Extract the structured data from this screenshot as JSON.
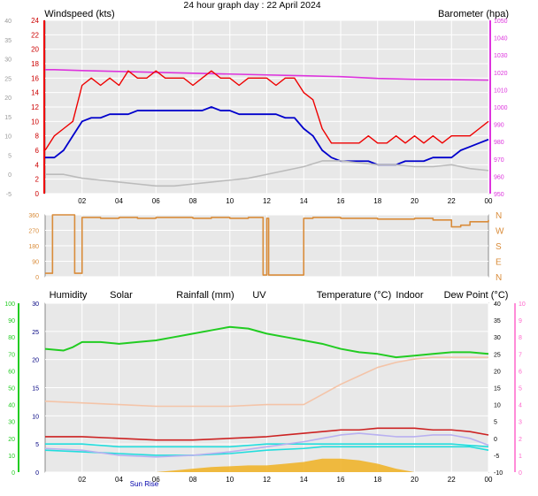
{
  "title": "24 hour graph day : 22 April 2024",
  "colors": {
    "wind_avg": "#0000cc",
    "wind_gust": "#ee0000",
    "temp_c": "#ee0000",
    "baro": "#dd33dd",
    "wind_dir": "#d98c3a",
    "humidity": "#22cc22",
    "solar": "#f0b020",
    "rain": "#000080",
    "uv": "#ff66cc",
    "temp": "#cc2222",
    "indoor": "#f4c4a8",
    "dewpoint": "#22dddd",
    "grey_series": "#bbbbbb",
    "lavender_series": "#b8b0f0",
    "bg": "#e8e8e8"
  },
  "chart_data": [
    {
      "type": "line",
      "panel": "wind_baro",
      "labels": {
        "left": "Windspeed (kts)",
        "right": "Barometer (hpa)"
      },
      "x_ticks": [
        "02",
        "04",
        "06",
        "08",
        "10",
        "12",
        "14",
        "16",
        "18",
        "20",
        "22",
        "00"
      ],
      "x_range": [
        0,
        24
      ],
      "left_outer_axis": {
        "range": [
          -5,
          40
        ],
        "ticks": [
          "-5",
          "0",
          "5",
          "10",
          "15",
          "20",
          "25",
          "30",
          "35",
          "40"
        ]
      },
      "left_axis": {
        "range": [
          0,
          24
        ],
        "ticks": [
          "0",
          "2",
          "4",
          "6",
          "8",
          "10",
          "12",
          "14",
          "16",
          "18",
          "20",
          "22",
          "24"
        ]
      },
      "right_axis": {
        "range": [
          950,
          1050
        ],
        "ticks": [
          "950",
          "960",
          "970",
          "980",
          "990",
          "1000",
          "1010",
          "1020",
          "1030",
          "1040",
          "1050"
        ]
      },
      "series": [
        {
          "name": "Barometer",
          "axis": "right",
          "x": [
            0,
            0.5,
            2,
            4,
            6,
            8,
            10,
            12,
            14,
            16,
            18,
            20,
            22,
            24
          ],
          "y": [
            1021.5,
            1021.5,
            1021,
            1020.5,
            1020,
            1019.5,
            1019,
            1018.5,
            1018,
            1017.5,
            1016.5,
            1016,
            1015.8,
            1015.5
          ]
        },
        {
          "name": "Windspeed gust",
          "axis": "left",
          "x": [
            0,
            0.5,
            1,
            1.5,
            2,
            2.5,
            3,
            3.5,
            4,
            4.5,
            5,
            5.5,
            6,
            6.5,
            7,
            7.5,
            8,
            8.5,
            9,
            9.5,
            10,
            10.5,
            11,
            11.5,
            12,
            12.5,
            13,
            13.5,
            14,
            14.5,
            15,
            15.5,
            16,
            16.5,
            17,
            17.5,
            18,
            18.5,
            19,
            19.5,
            20,
            20.5,
            21,
            21.5,
            22,
            22.5,
            23,
            23.5,
            24
          ],
          "y": [
            6,
            8,
            9,
            10,
            15,
            16,
            15,
            16,
            15,
            17,
            16,
            16,
            17,
            16,
            16,
            16,
            15,
            16,
            17,
            16,
            16,
            15,
            16,
            16,
            16,
            15,
            16,
            16,
            14,
            13,
            9,
            7,
            7,
            7,
            7,
            8,
            7,
            7,
            8,
            7,
            8,
            7,
            8,
            7,
            8,
            8,
            8,
            9,
            10
          ]
        },
        {
          "name": "Windspeed",
          "axis": "left",
          "x": [
            0,
            0.5,
            1,
            1.5,
            2,
            2.5,
            3,
            3.5,
            4,
            4.5,
            5,
            5.5,
            6,
            6.5,
            7,
            7.5,
            8,
            8.5,
            9,
            9.5,
            10,
            10.5,
            11,
            11.5,
            12,
            12.5,
            13,
            13.5,
            14,
            14.5,
            15,
            15.5,
            16,
            16.5,
            17,
            17.5,
            18,
            18.5,
            19,
            19.5,
            20,
            20.5,
            21,
            21.5,
            22,
            22.5,
            23,
            23.5,
            24
          ],
          "y": [
            5,
            5,
            6,
            8,
            10,
            10.5,
            10.5,
            11,
            11,
            11,
            11.5,
            11.5,
            11.5,
            11.5,
            11.5,
            11.5,
            11.5,
            11.5,
            12,
            11.5,
            11.5,
            11,
            11,
            11,
            11,
            11,
            10.5,
            10.5,
            9,
            8,
            6,
            5,
            4.5,
            4.5,
            4.5,
            4.5,
            4,
            4,
            4,
            4.5,
            4.5,
            4.5,
            5,
            5,
            5,
            6,
            6.5,
            7,
            7.5
          ]
        },
        {
          "name": "Temperature",
          "axis": "left_outer",
          "x": [
            0,
            1,
            2,
            3,
            4,
            5,
            6,
            7,
            8,
            9,
            10,
            11,
            12,
            13,
            14,
            15,
            16,
            17,
            18,
            19,
            20,
            21,
            22,
            23,
            24
          ],
          "y": [
            0,
            0,
            -1,
            -1.5,
            -2,
            -2.5,
            -3,
            -3,
            -2.5,
            -2,
            -1.5,
            -1,
            0,
            1,
            2,
            3.5,
            3.5,
            3,
            2.5,
            2.5,
            2,
            2,
            2.5,
            1.5,
            1
          ]
        }
      ]
    },
    {
      "type": "line",
      "panel": "wind_direction",
      "labels": {
        "right_compass": [
          "N",
          "W",
          "S",
          "E",
          "N"
        ]
      },
      "x_range": [
        0,
        24
      ],
      "y_axis": {
        "range": [
          0,
          360
        ],
        "ticks": [
          "0",
          "90",
          "180",
          "270",
          "360"
        ]
      },
      "series": [
        {
          "name": "Wind direction",
          "x": [
            0,
            0.3,
            0.4,
            1.5,
            1.6,
            2,
            2.5,
            3,
            4,
            5,
            6,
            7,
            8,
            9,
            10,
            11,
            11.7,
            11.8,
            12,
            12.1,
            13,
            14,
            14.5,
            16,
            18,
            20,
            21,
            22,
            22.5,
            23,
            24
          ],
          "y": [
            20,
            20,
            360,
            360,
            20,
            345,
            345,
            340,
            345,
            340,
            345,
            345,
            340,
            345,
            340,
            345,
            345,
            10,
            340,
            10,
            10,
            340,
            345,
            340,
            335,
            340,
            330,
            290,
            300,
            320,
            330
          ]
        }
      ]
    },
    {
      "type": "line",
      "panel": "climate",
      "labels": {
        "humidity": "Humidity",
        "solar": "Solar",
        "rainfall": "Rainfall (mm)",
        "uv": "UV",
        "temperature": "Temperature (°C)",
        "indoor": "Indoor",
        "dewpoint": "Dew Point (°C)",
        "sunrise": "Sun Rise"
      },
      "x_ticks": [
        "02",
        "04",
        "06",
        "08",
        "10",
        "12",
        "14",
        "16",
        "18",
        "20",
        "22",
        "00"
      ],
      "x_range": [
        0,
        24
      ],
      "humidity_axis": {
        "range": [
          0,
          100
        ],
        "ticks": [
          "0",
          "10",
          "20",
          "30",
          "40",
          "50",
          "60",
          "70",
          "80",
          "90",
          "100"
        ]
      },
      "rain_axis": {
        "range": [
          0,
          30
        ],
        "ticks": [
          "0",
          "5",
          "10",
          "15",
          "20",
          "25",
          "30"
        ]
      },
      "temp_axis": {
        "range": [
          -10,
          40
        ],
        "ticks": [
          "-10",
          "-5",
          "0",
          "5",
          "10",
          "15",
          "20",
          "25",
          "30",
          "35",
          "40"
        ]
      },
      "uv_axis": {
        "range": [
          0,
          10
        ],
        "ticks": [
          "0",
          "1",
          "2",
          "3",
          "4",
          "5",
          "6",
          "7",
          "8",
          "9",
          "10"
        ]
      },
      "series": [
        {
          "name": "Humidity",
          "axis": "humidity",
          "x": [
            0,
            1,
            1.5,
            2,
            3,
            4,
            5,
            6,
            7,
            8,
            9,
            10,
            11,
            12,
            13,
            14,
            15,
            16,
            17,
            18,
            19,
            20,
            21,
            22,
            23,
            24
          ],
          "y": [
            73,
            72,
            74,
            77,
            77,
            76,
            77,
            78,
            80,
            82,
            84,
            86,
            85,
            82,
            80,
            78,
            76,
            73,
            71,
            70,
            68,
            69,
            70,
            71,
            71,
            70
          ]
        },
        {
          "name": "Indoor",
          "axis": "temp",
          "x": [
            0,
            2,
            4,
            6,
            8,
            10,
            12,
            13,
            14,
            15,
            16,
            17,
            18,
            19,
            20,
            21,
            22,
            23,
            24
          ],
          "y": [
            11,
            10.5,
            10,
            9.5,
            9.5,
            9.5,
            10,
            10,
            10,
            13,
            16,
            18.5,
            21,
            22.5,
            23.5,
            24,
            24,
            24,
            24
          ]
        },
        {
          "name": "Temperature",
          "axis": "temp",
          "x": [
            0,
            2,
            4,
            6,
            8,
            10,
            12,
            13,
            14,
            15,
            16,
            17,
            18,
            19,
            20,
            21,
            22,
            23,
            24
          ],
          "y": [
            0.5,
            0.5,
            0,
            -0.5,
            -0.5,
            0,
            0.5,
            1,
            1.5,
            2,
            2.5,
            2.5,
            3,
            3,
            3,
            2.5,
            2.5,
            2,
            1
          ]
        },
        {
          "name": "Rainfall",
          "axis": "rain",
          "x": [
            0,
            2,
            4,
            6,
            8,
            10,
            12,
            14,
            16,
            18,
            20,
            22,
            24
          ],
          "y": [
            5,
            5,
            4.5,
            4.5,
            4.5,
            4.5,
            5,
            5,
            5,
            5,
            5,
            5,
            4.5
          ]
        },
        {
          "name": "Dew Point",
          "axis": "temp",
          "x": [
            0,
            2,
            4,
            6,
            8,
            10,
            12,
            14,
            15,
            16,
            17,
            18,
            19,
            20,
            21,
            22,
            23,
            24
          ],
          "y": [
            -3.5,
            -4,
            -4.5,
            -5,
            -5,
            -4.5,
            -3.5,
            -3,
            -2.5,
            -2.5,
            -2.5,
            -2.5,
            -2.5,
            -2.5,
            -2.5,
            -2.5,
            -2.5,
            -3.5
          ]
        },
        {
          "name": "Lavender",
          "axis": "temp",
          "x": [
            0,
            2,
            4,
            6,
            8,
            10,
            12,
            14,
            15,
            16,
            17,
            18,
            19,
            20,
            21,
            22,
            23,
            24
          ],
          "y": [
            -3,
            -3.5,
            -5,
            -5.5,
            -5,
            -4,
            -2.5,
            -1,
            0,
            1,
            1.5,
            1,
            0.5,
            0.5,
            1,
            1,
            0,
            -2
          ]
        },
        {
          "name": "Solar",
          "axis": "humidity",
          "x": [
            6,
            7,
            8,
            9,
            10,
            11,
            12,
            13,
            14,
            15,
            16,
            17,
            18,
            19,
            20
          ],
          "y": [
            0,
            1,
            2,
            3,
            3.5,
            4,
            4,
            5,
            6,
            8,
            8,
            7,
            5,
            2,
            0
          ]
        }
      ]
    }
  ]
}
